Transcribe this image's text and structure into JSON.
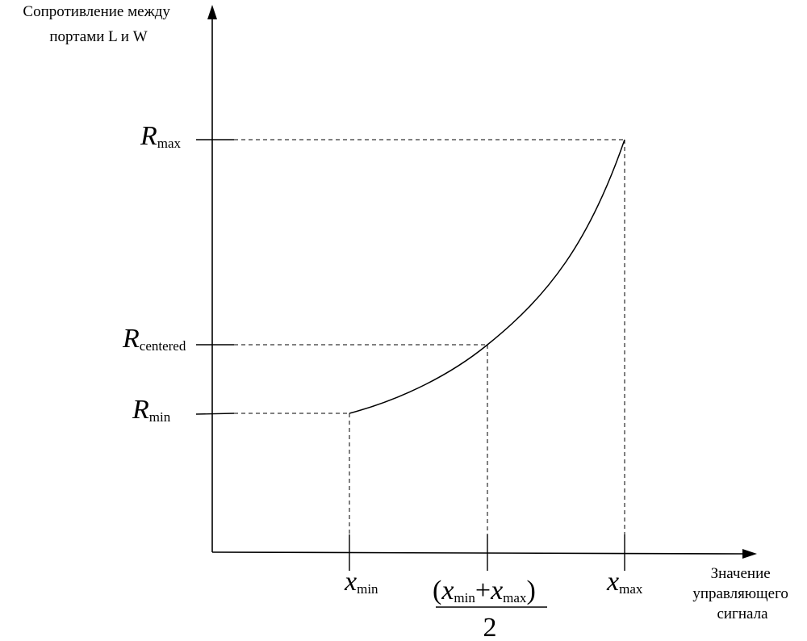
{
  "y_axis_title": [
    "Сопротивление между",
    "портами L и W"
  ],
  "x_axis_title": [
    "Значение",
    "управляющего",
    "сигнала"
  ],
  "y_ticks": {
    "r_max": {
      "symbol": "R",
      "subscript": "max"
    },
    "r_centered": {
      "symbol": "R",
      "subscript": "centered"
    },
    "r_min": {
      "symbol": "R",
      "subscript": "min"
    }
  },
  "x_ticks": {
    "x_min": {
      "symbol": "x",
      "subscript": "min"
    },
    "x_mid": {
      "open_paren": "(",
      "first": {
        "symbol": "x",
        "subscript": "min"
      },
      "plus": "+",
      "second": {
        "symbol": "x",
        "subscript": "max"
      },
      "close_paren": ")",
      "denominator": "2"
    },
    "x_max": {
      "symbol": "x",
      "subscript": "max"
    }
  },
  "colors": {
    "stroke": "#000000",
    "background": "#ffffff"
  }
}
